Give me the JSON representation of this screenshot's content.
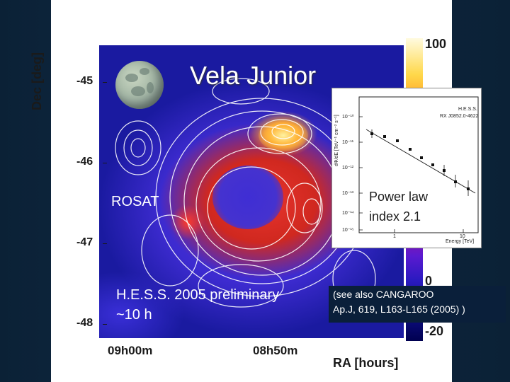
{
  "title": "Vela Junior",
  "labels": {
    "rosat": "ROSAT",
    "hess_line1": "H.E.S.S. 2005 preliminary",
    "hess_line2": "~10 h",
    "power_law_line1": "Power law",
    "power_law_line2": "index 2.1",
    "cangaroo_line1": "(see also CANGAROO",
    "cangaroo_line2": "Ap.J, 619, L163-L165 (2005) )"
  },
  "axes": {
    "y_title": "Dec [deg]",
    "y_ticks": [
      "-45",
      "-46",
      "-47",
      "-48"
    ],
    "x_title": "RA [hours]",
    "x_ticks": [
      "09h00m",
      "08h50m"
    ]
  },
  "colorbar": {
    "top_label": "100",
    "zero_label": "0",
    "bottom_label": "-20"
  },
  "inset": {
    "legend_line1": "H.E.S.S.",
    "legend_line2": "RX J0852.0-4622",
    "x_label": "Energy [TeV]",
    "y_label": "dΦ/dE [TeV⁻¹ cm⁻² s⁻¹]",
    "x_tick_1": "1",
    "x_tick_10": "10",
    "y_ticks": [
      "10⁻¹⁰",
      "10⁻¹¹",
      "10⁻¹²",
      "10⁻¹³",
      "10⁻¹⁴",
      "10⁻¹⁵"
    ]
  },
  "colors": {
    "background": "#0b2136",
    "cangaroo_box": "#0a1f3a",
    "map_base": "#1a1aa0"
  }
}
